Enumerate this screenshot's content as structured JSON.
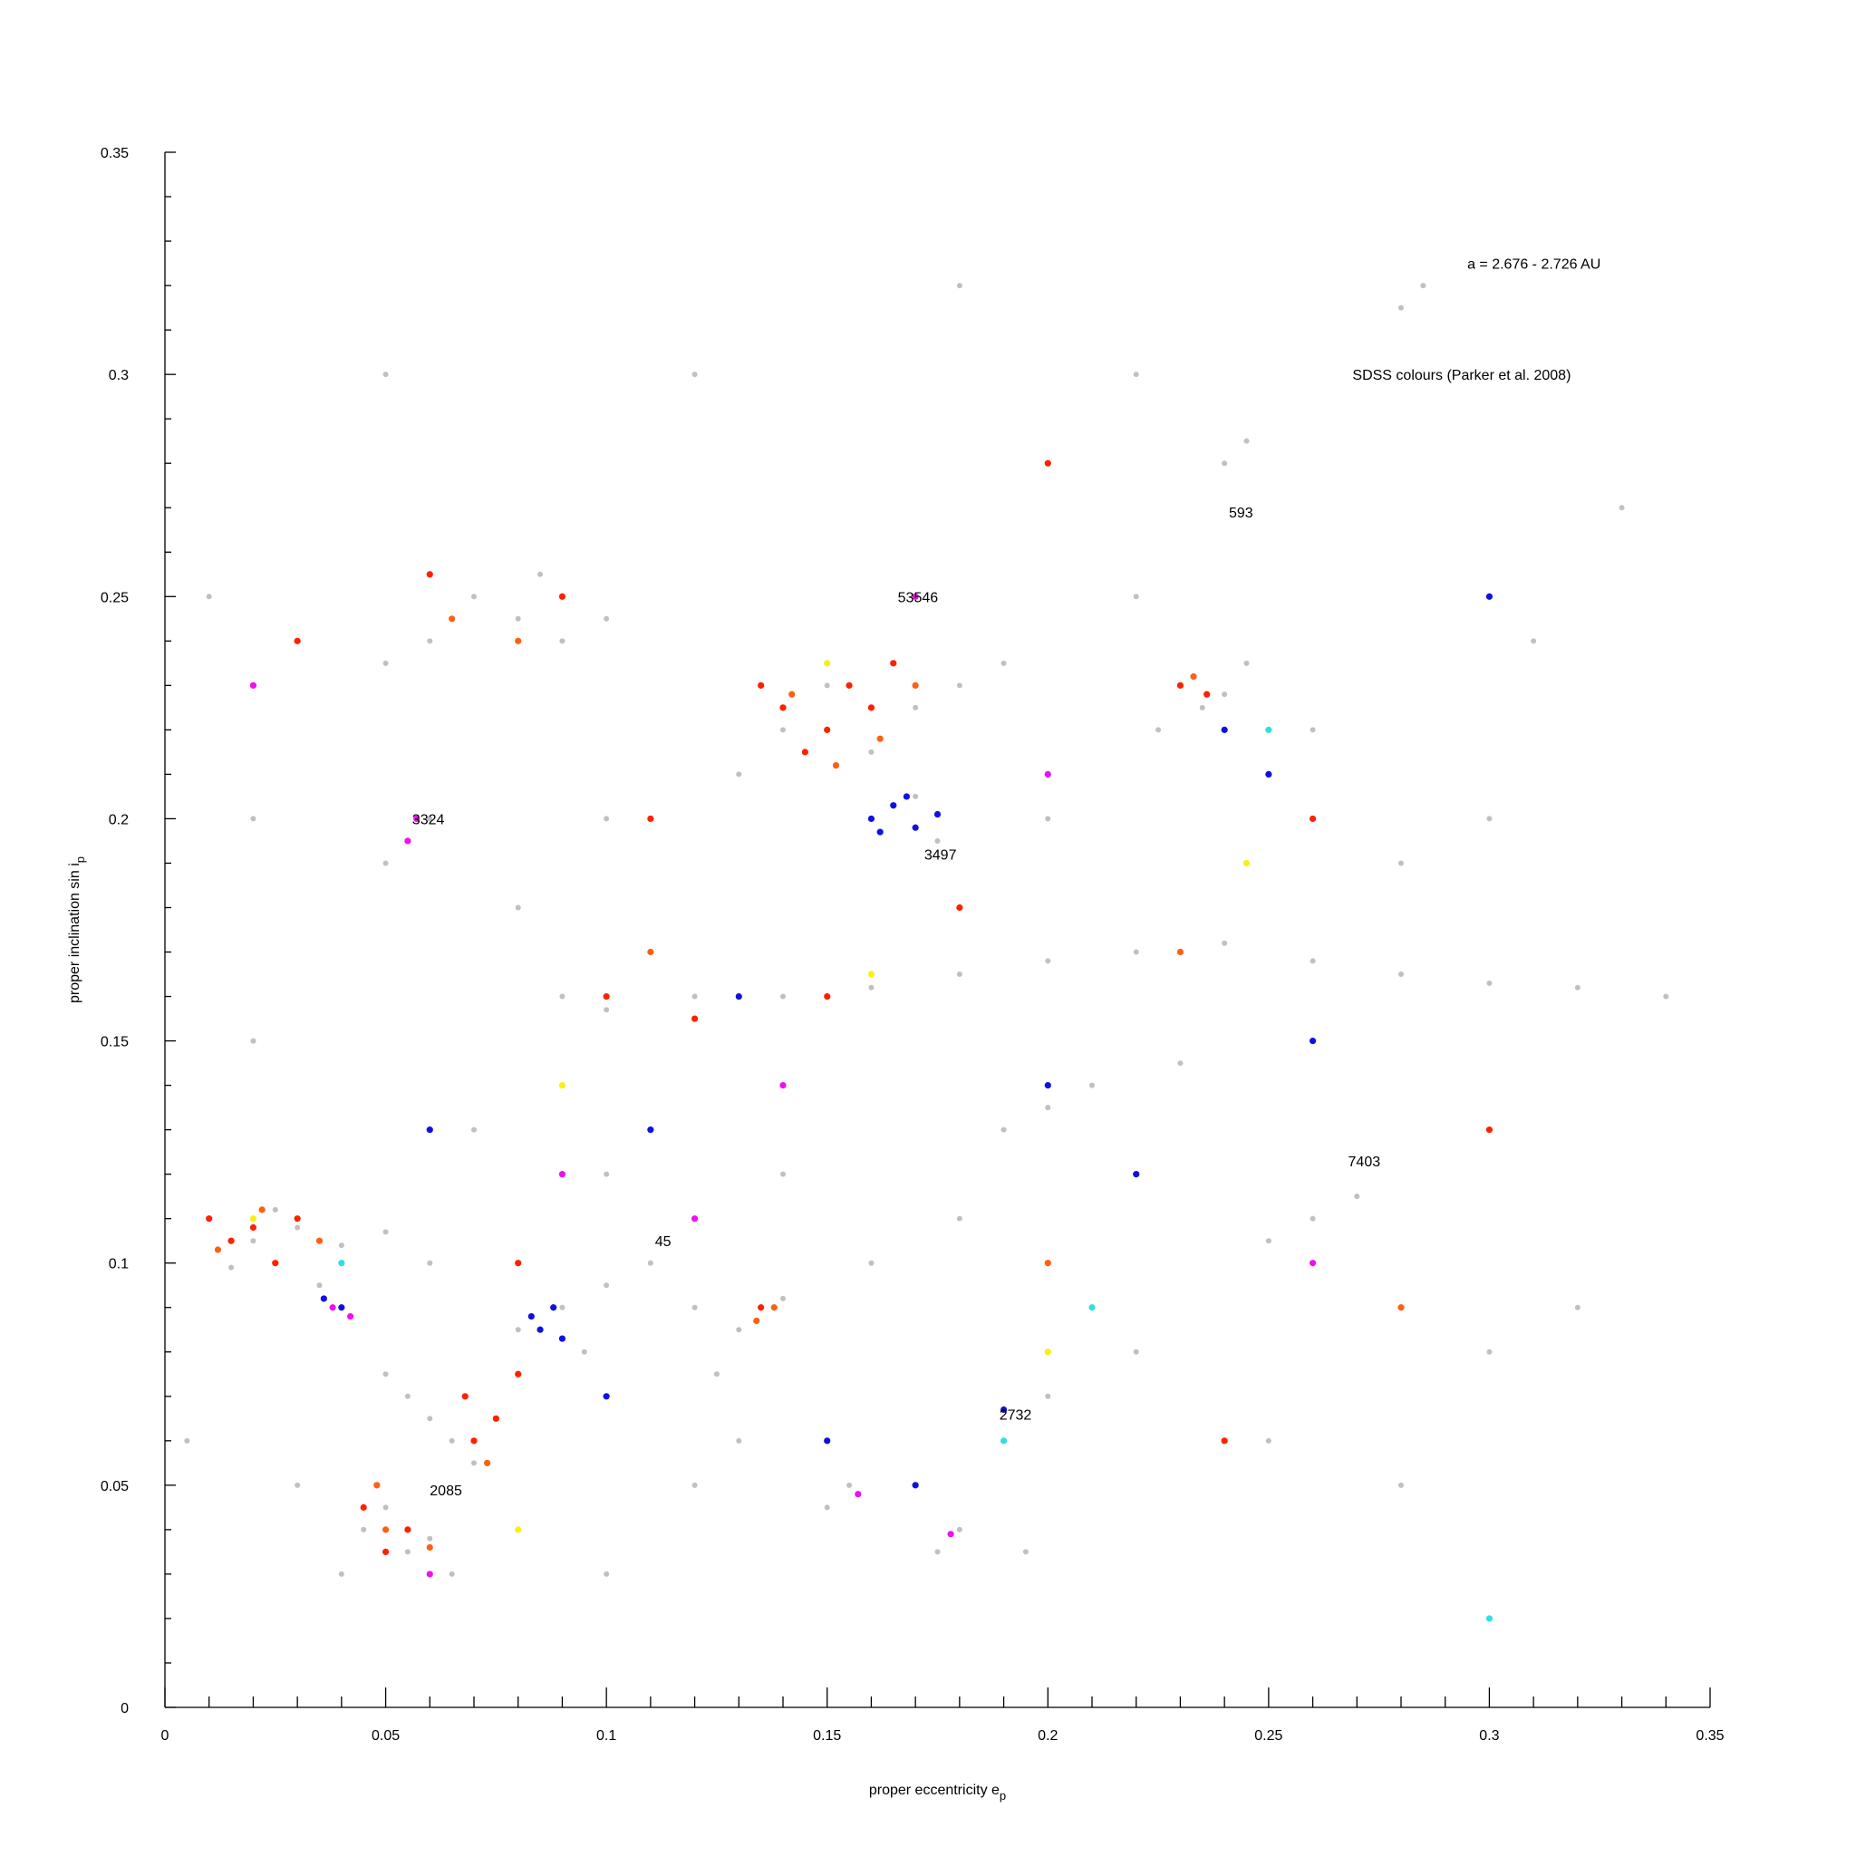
{
  "chart_data": {
    "type": "scatter",
    "x_label": {
      "text": "proper eccentricity e",
      "subscript": "p"
    },
    "y_label": {
      "text": "proper inclination sin i",
      "subscript": "p"
    },
    "xlim": [
      0,
      0.35
    ],
    "ylim": [
      0,
      0.35
    ],
    "xticks": [
      0,
      0.05,
      0.1,
      0.15,
      0.2,
      0.25,
      0.3,
      0.35
    ],
    "yticks": [
      0,
      0.05,
      0.1,
      0.15,
      0.2,
      0.25,
      0.3,
      0.35
    ],
    "xminorticks": [
      0.01,
      0.02,
      0.03,
      0.04,
      0.06,
      0.07,
      0.08,
      0.09,
      0.11,
      0.12,
      0.13,
      0.14,
      0.16,
      0.17,
      0.18,
      0.19,
      0.21,
      0.22,
      0.23,
      0.24,
      0.26,
      0.27,
      0.28,
      0.29,
      0.31,
      0.32,
      0.33,
      0.34
    ],
    "yminorticks": [
      0.01,
      0.02,
      0.03,
      0.04,
      0.06,
      0.07,
      0.08,
      0.09,
      0.11,
      0.12,
      0.13,
      0.14,
      0.16,
      0.17,
      0.18,
      0.19,
      0.21,
      0.22,
      0.23,
      0.24,
      0.26,
      0.27,
      0.28,
      0.29,
      0.31,
      0.32,
      0.33,
      0.34
    ],
    "annotations": [
      {
        "text": "a = 2.676 - 2.726 AU",
        "x": 0.295,
        "y": 0.325
      },
      {
        "text": "SDSS colours (Parker et al. 2008)",
        "x": 0.269,
        "y": 0.3
      },
      {
        "text": "593",
        "x": 0.241,
        "y": 0.269
      },
      {
        "text": "53546",
        "x": 0.166,
        "y": 0.25
      },
      {
        "text": "3324",
        "x": 0.056,
        "y": 0.2
      },
      {
        "text": "3497",
        "x": 0.172,
        "y": 0.192
      },
      {
        "text": "7403",
        "x": 0.268,
        "y": 0.123
      },
      {
        "text": "45",
        "x": 0.111,
        "y": 0.105
      },
      {
        "text": "2732",
        "x": 0.189,
        "y": 0.066
      },
      {
        "text": "2085",
        "x": 0.06,
        "y": 0.049
      }
    ],
    "series": [
      {
        "color": "#c0c0c0",
        "x": [
          0.02,
          0.03,
          0.04,
          0.05,
          0.025,
          0.015,
          0.06,
          0.035,
          0.05,
          0.055,
          0.06,
          0.065,
          0.07,
          0.045,
          0.055,
          0.05,
          0.06,
          0.04,
          0.065,
          0.08,
          0.09,
          0.1,
          0.095,
          0.11,
          0.12,
          0.13,
          0.14,
          0.125,
          0.08,
          0.07,
          0.09,
          0.1,
          0.06,
          0.085,
          0.05,
          0.14,
          0.15,
          0.16,
          0.17,
          0.18,
          0.13,
          0.19,
          0.16,
          0.17,
          0.175,
          0.23,
          0.235,
          0.24,
          0.225,
          0.245,
          0.09,
          0.1,
          0.12,
          0.14,
          0.16,
          0.18,
          0.2,
          0.22,
          0.24,
          0.26,
          0.28,
          0.3,
          0.32,
          0.2,
          0.21,
          0.19,
          0.23,
          0.055,
          0.06,
          0.05,
          0.24,
          0.245,
          0.28,
          0.285,
          0.26,
          0.27,
          0.25,
          0.18,
          0.175,
          0.195,
          0.155,
          0.15,
          0.12,
          0.1,
          0.13,
          0.2,
          0.22,
          0.25,
          0.28,
          0.3,
          0.32,
          0.3,
          0.31,
          0.33,
          0.12,
          0.18,
          0.05,
          0.02,
          0.01,
          0.02,
          0.03,
          0.005,
          0.1,
          0.08,
          0.22,
          0.26,
          0.28,
          0.34,
          0.14,
          0.16,
          0.18,
          0.2,
          0.2,
          0.22,
          0.1,
          0.07
        ],
        "y": [
          0.105,
          0.108,
          0.104,
          0.107,
          0.112,
          0.099,
          0.1,
          0.095,
          0.075,
          0.07,
          0.065,
          0.06,
          0.055,
          0.04,
          0.035,
          0.045,
          0.038,
          0.03,
          0.03,
          0.085,
          0.09,
          0.095,
          0.08,
          0.1,
          0.09,
          0.085,
          0.092,
          0.075,
          0.245,
          0.25,
          0.24,
          0.245,
          0.24,
          0.255,
          0.235,
          0.22,
          0.23,
          0.215,
          0.225,
          0.23,
          0.21,
          0.235,
          0.2,
          0.205,
          0.195,
          0.23,
          0.225,
          0.228,
          0.22,
          0.235,
          0.16,
          0.157,
          0.16,
          0.16,
          0.162,
          0.165,
          0.168,
          0.17,
          0.172,
          0.168,
          0.165,
          0.163,
          0.162,
          0.135,
          0.14,
          0.13,
          0.145,
          0.195,
          0.2,
          0.19,
          0.28,
          0.285,
          0.315,
          0.32,
          0.11,
          0.115,
          0.105,
          0.04,
          0.035,
          0.035,
          0.05,
          0.045,
          0.05,
          0.03,
          0.06,
          0.07,
          0.08,
          0.06,
          0.05,
          0.08,
          0.09,
          0.2,
          0.24,
          0.27,
          0.3,
          0.32,
          0.3,
          0.2,
          0.25,
          0.15,
          0.05,
          0.06,
          0.2,
          0.18,
          0.25,
          0.22,
          0.19,
          0.16,
          0.12,
          0.1,
          0.11,
          0.1,
          0.2,
          0.3,
          0.12,
          0.13
        ]
      },
      {
        "color": "#ff2000",
        "x": [
          0.01,
          0.015,
          0.02,
          0.025,
          0.03,
          0.14,
          0.145,
          0.15,
          0.155,
          0.16,
          0.135,
          0.165,
          0.23,
          0.236,
          0.05,
          0.055,
          0.045,
          0.07,
          0.068,
          0.075,
          0.08,
          0.135,
          0.09,
          0.06,
          0.1,
          0.12,
          0.15,
          0.2,
          0.11,
          0.03,
          0.24,
          0.3,
          0.18,
          0.08,
          0.26
        ],
        "y": [
          0.11,
          0.105,
          0.108,
          0.1,
          0.11,
          0.225,
          0.215,
          0.22,
          0.23,
          0.225,
          0.23,
          0.235,
          0.23,
          0.228,
          0.035,
          0.04,
          0.045,
          0.06,
          0.07,
          0.065,
          0.075,
          0.09,
          0.25,
          0.255,
          0.16,
          0.155,
          0.16,
          0.28,
          0.2,
          0.24,
          0.06,
          0.13,
          0.18,
          0.1,
          0.2
        ]
      },
      {
        "color": "#ff6010",
        "x": [
          0.012,
          0.022,
          0.035,
          0.142,
          0.152,
          0.162,
          0.17,
          0.233,
          0.134,
          0.138,
          0.05,
          0.06,
          0.048,
          0.073,
          0.08,
          0.065,
          0.23,
          0.11,
          0.2,
          0.28
        ],
        "y": [
          0.103,
          0.112,
          0.105,
          0.228,
          0.212,
          0.218,
          0.23,
          0.232,
          0.087,
          0.09,
          0.04,
          0.036,
          0.05,
          0.055,
          0.24,
          0.245,
          0.17,
          0.17,
          0.1,
          0.09
        ]
      },
      {
        "color": "#1010e0",
        "x": [
          0.16,
          0.165,
          0.17,
          0.168,
          0.175,
          0.162,
          0.085,
          0.088,
          0.09,
          0.083,
          0.036,
          0.04,
          0.25,
          0.24,
          0.2,
          0.15,
          0.17,
          0.11,
          0.06,
          0.26,
          0.19,
          0.22,
          0.13,
          0.3,
          0.1
        ],
        "y": [
          0.2,
          0.203,
          0.198,
          0.205,
          0.201,
          0.197,
          0.085,
          0.09,
          0.083,
          0.088,
          0.092,
          0.09,
          0.21,
          0.22,
          0.14,
          0.06,
          0.05,
          0.13,
          0.13,
          0.15,
          0.067,
          0.12,
          0.16,
          0.25,
          0.07
        ]
      },
      {
        "color": "#ee10ee",
        "x": [
          0.055,
          0.057,
          0.038,
          0.042,
          0.157,
          0.178,
          0.17,
          0.12,
          0.09,
          0.2,
          0.26,
          0.06,
          0.14,
          0.02
        ],
        "y": [
          0.195,
          0.2,
          0.09,
          0.088,
          0.048,
          0.039,
          0.25,
          0.11,
          0.12,
          0.21,
          0.1,
          0.03,
          0.14,
          0.23
        ]
      },
      {
        "color": "#f8f010",
        "x": [
          0.02,
          0.15,
          0.16,
          0.08,
          0.2,
          0.09,
          0.245
        ],
        "y": [
          0.11,
          0.235,
          0.165,
          0.04,
          0.08,
          0.14,
          0.19
        ]
      },
      {
        "color": "#30e0e0",
        "x": [
          0.19,
          0.21,
          0.3,
          0.25,
          0.04
        ],
        "y": [
          0.06,
          0.09,
          0.02,
          0.22,
          0.1
        ]
      }
    ]
  }
}
